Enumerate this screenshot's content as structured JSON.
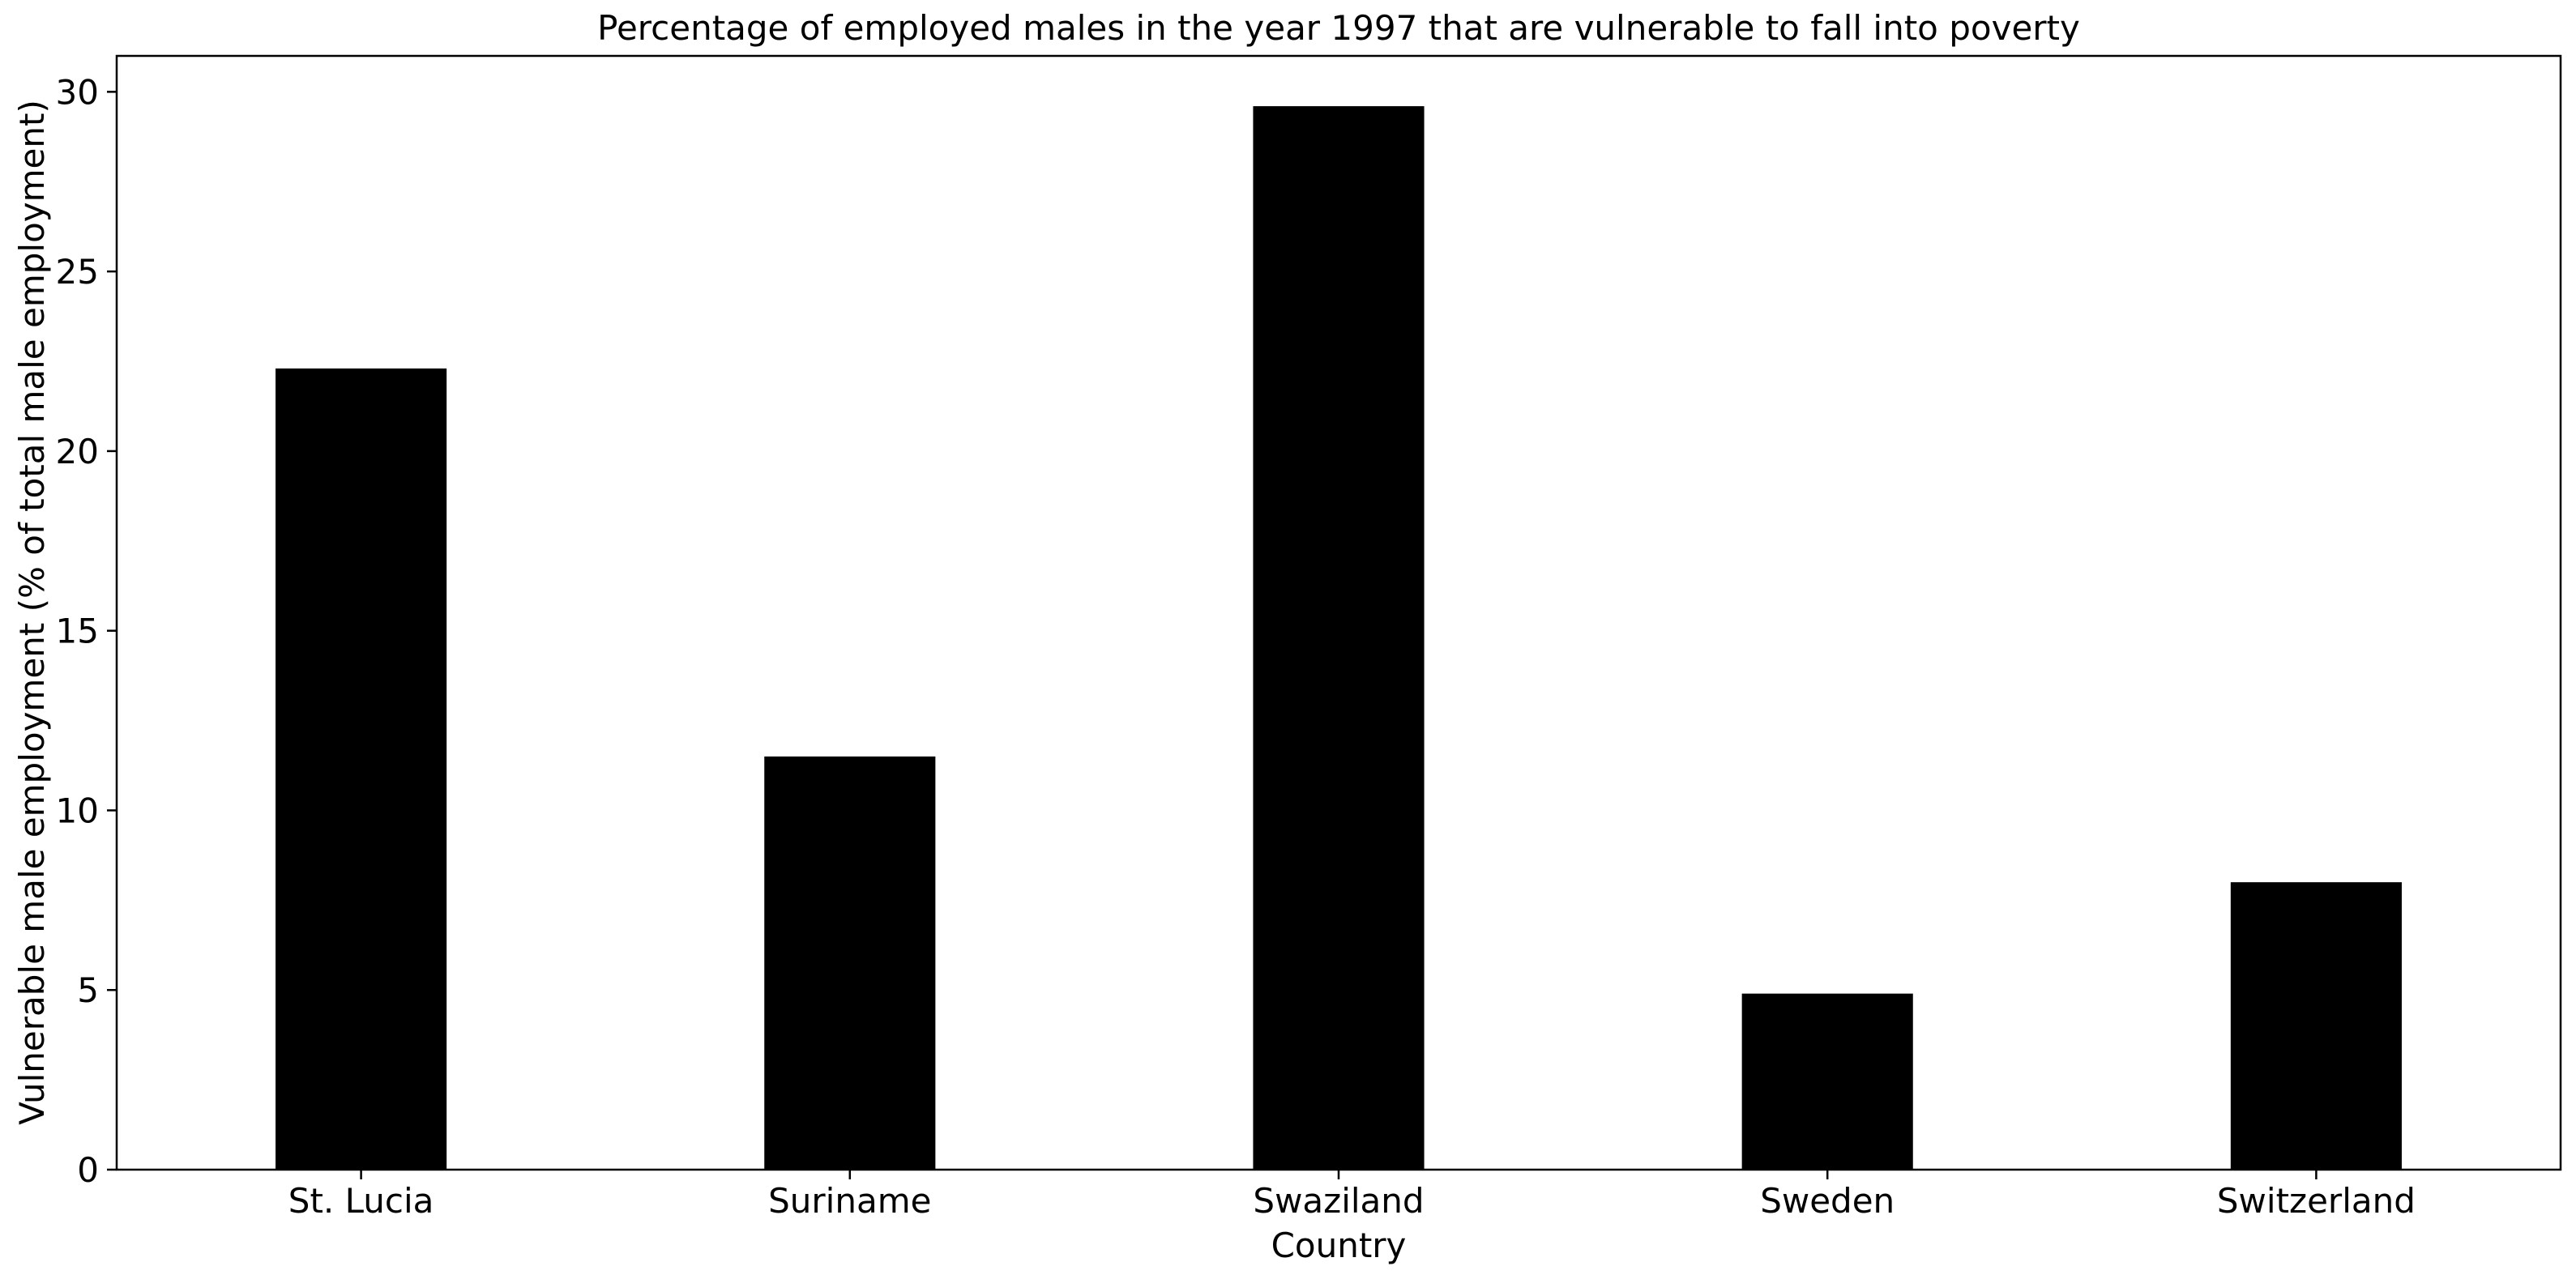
{
  "chart_data": {
    "type": "bar",
    "title": "Percentage of employed males in the year 1997 that are vulnerable to fall into poverty",
    "xlabel": "Country",
    "ylabel": "Vulnerable male employment (% of total male employment)",
    "categories": [
      "St. Lucia",
      "Suriname",
      "Swaziland",
      "Sweden",
      "Switzerland"
    ],
    "values": [
      22.3,
      11.5,
      29.6,
      4.9,
      8.0
    ],
    "ylim": [
      0,
      31
    ],
    "yticks": [
      0,
      5,
      10,
      15,
      20,
      25,
      30
    ],
    "bar_color": "#000000",
    "grid": false,
    "legend": "none"
  }
}
